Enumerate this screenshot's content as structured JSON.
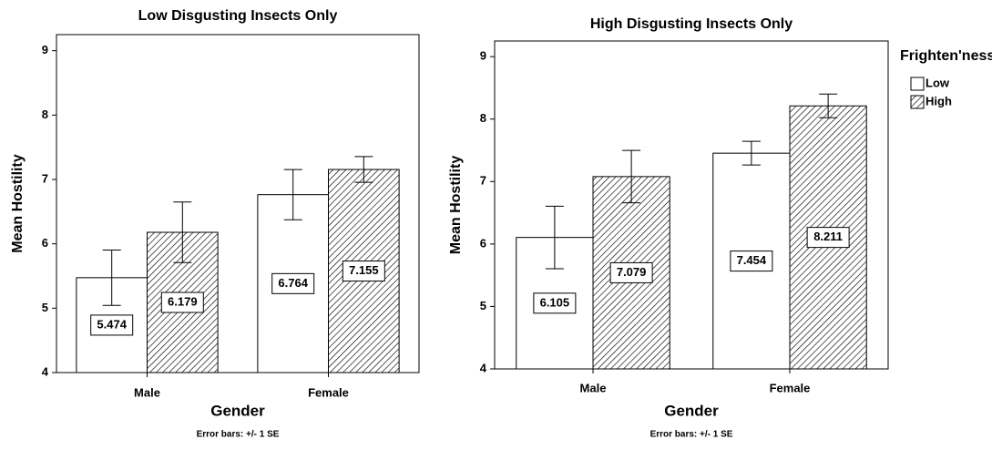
{
  "chart_data": [
    {
      "type": "bar",
      "title": "Low Disgusting Insects Only",
      "x_label": "Gender",
      "y_label": "Mean Hostility",
      "note": "Error bars: +/- 1 SE",
      "categories": [
        "Male",
        "Female"
      ],
      "series": [
        {
          "color": "#ffffff",
          "hatch": false,
          "values": [
            5.474,
            6.764
          ],
          "errors": [
            0.43,
            0.39
          ]
        },
        {
          "color": "#ffffff",
          "hatch": true,
          "values": [
            6.179,
            7.155
          ],
          "errors": [
            0.47,
            0.2
          ]
        }
      ],
      "ylim": [
        4,
        9.25
      ],
      "yticks": [
        4,
        5,
        6,
        7,
        8,
        9
      ],
      "legend": false
    },
    {
      "type": "bar",
      "title": "High Disgusting Insects Only",
      "x_label": "Gender",
      "y_label": "Mean Hostility",
      "note": "Error bars: +/- 1 SE",
      "legend_title": "Frighten'ness",
      "categories": [
        "Male",
        "Female"
      ],
      "series": [
        {
          "name": "Low",
          "color": "#ffffff",
          "hatch": false,
          "values": [
            6.105,
            7.454
          ],
          "errors": [
            0.5,
            0.19
          ]
        },
        {
          "name": "High",
          "color": "#ffffff",
          "hatch": true,
          "values": [
            7.079,
            8.211
          ],
          "errors": [
            0.42,
            0.19
          ]
        }
      ],
      "ylim": [
        4,
        9.25
      ],
      "yticks": [
        4,
        5,
        6,
        7,
        8,
        9
      ],
      "legend": true
    }
  ]
}
